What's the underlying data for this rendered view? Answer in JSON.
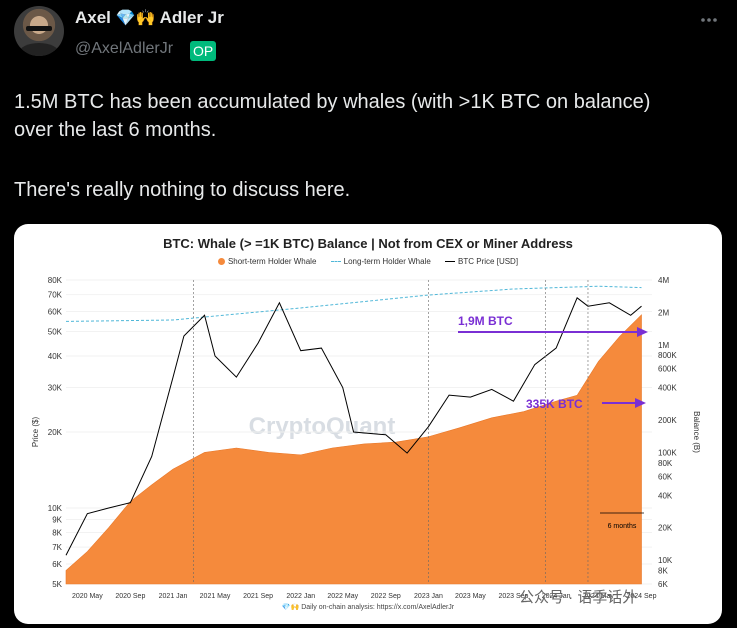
{
  "post": {
    "author_name": "Axel",
    "author_emoji": "💎🙌",
    "author_name_suffix": "Adler Jr",
    "handle": "@AxelAdlerJr",
    "op_badge": "OP",
    "more_icon": "more-horizontal-icon",
    "text_line1": "1.5M BTC has been accumulated by whales (with >1K BTC on balance)",
    "text_line2": "over the last 6 months.",
    "text_line3": "There's really nothing to discuss here."
  },
  "image": {
    "footer": "💎🙌 Daily on-chain analysis: https://x.com/AxelAdlerJr",
    "watermark": "公众号 · 语季话外"
  },
  "chart_data": {
    "type": "area",
    "title": "BTC: Whale (> =1K BTC) Balance | Not from CEX or Miner Address",
    "ylabel_left": "Price ($)",
    "ylabel_right": "Balance (B)",
    "watermark": "CryptoQuant",
    "legend_position": "top",
    "legend": [
      "Short-term Holder Whale",
      "Long-term Holder Whale",
      "BTC Price [USD]"
    ],
    "colors": {
      "stw": "#f58a3c",
      "ltw": "#4fb7d8",
      "price": "#000000",
      "arrow": "#7a2fd4"
    },
    "y_left_scale": "log",
    "y_left_ticks": [
      "80K",
      "70K",
      "60K",
      "50K",
      "40K",
      "30K",
      "20K",
      "10K",
      "9K",
      "8K",
      "7K",
      "6K",
      "5K"
    ],
    "y_left_values": [
      80000,
      70000,
      60000,
      50000,
      40000,
      30000,
      20000,
      10000,
      9000,
      8000,
      7000,
      6000,
      5000
    ],
    "y_right_scale": "log",
    "y_right_ticks": [
      "4M",
      "2M",
      "1M",
      "800K",
      "600K",
      "400K",
      "200K",
      "100K",
      "80K",
      "60K",
      "40K",
      "20K",
      "10K",
      "8K",
      "6K"
    ],
    "y_right_values": [
      4000000,
      2000000,
      1000000,
      800000,
      600000,
      400000,
      200000,
      100000,
      80000,
      60000,
      40000,
      20000,
      10000,
      8000,
      6000
    ],
    "x_ticks": [
      "2020 May",
      "2020 Sep",
      "2021 Jan",
      "2021 May",
      "2021 Sep",
      "2022 Jan",
      "2022 May",
      "2022 Sep",
      "2023 Jan",
      "2023 May",
      "2023 Sep",
      "2024 Jan",
      "2024 May",
      "2024 Sep"
    ],
    "annotations": [
      "1,9M BTC",
      "335K BTC",
      "6 months"
    ],
    "series": [
      {
        "name": "BTC Price [USD]",
        "x": [
          "2020-03",
          "2020-05",
          "2020-07",
          "2020-09",
          "2020-11",
          "2021-01",
          "2021-02",
          "2021-04",
          "2021-05",
          "2021-07",
          "2021-09",
          "2021-11",
          "2022-01",
          "2022-03",
          "2022-05",
          "2022-06",
          "2022-09",
          "2022-11",
          "2023-01",
          "2023-03",
          "2023-05",
          "2023-07",
          "2023-09",
          "2023-11",
          "2024-01",
          "2024-03",
          "2024-04",
          "2024-06",
          "2024-08",
          "2024-09"
        ],
        "values": [
          6500,
          9500,
          10000,
          10500,
          16000,
          33000,
          48000,
          58000,
          40000,
          33000,
          45000,
          65000,
          42000,
          43000,
          30000,
          20000,
          19500,
          16500,
          21000,
          28000,
          27500,
          29500,
          26500,
          37000,
          43000,
          68000,
          63000,
          65000,
          58000,
          63000
        ]
      },
      {
        "name": "Short-term Holder Whale",
        "x": [
          "2020-03",
          "2020-05",
          "2020-07",
          "2020-09",
          "2020-11",
          "2021-01",
          "2021-04",
          "2021-07",
          "2021-10",
          "2022-01",
          "2022-04",
          "2022-07",
          "2022-10",
          "2023-01",
          "2023-04",
          "2023-07",
          "2023-10",
          "2024-01",
          "2024-03",
          "2024-05",
          "2024-07",
          "2024-09"
        ],
        "values": [
          8000,
          12000,
          20000,
          35000,
          50000,
          70000,
          100000,
          110000,
          100000,
          95000,
          110000,
          120000,
          125000,
          140000,
          170000,
          210000,
          240000,
          300000,
          340000,
          700000,
          1200000,
          1900000
        ]
      },
      {
        "name": "Long-term Holder Whale",
        "x": [
          "2020-03",
          "2021-01",
          "2022-01",
          "2023-01",
          "2023-09",
          "2024-05",
          "2024-09"
        ],
        "values": [
          1650000,
          1700000,
          2200000,
          2900000,
          3300000,
          3500000,
          3400000
        ]
      }
    ]
  }
}
